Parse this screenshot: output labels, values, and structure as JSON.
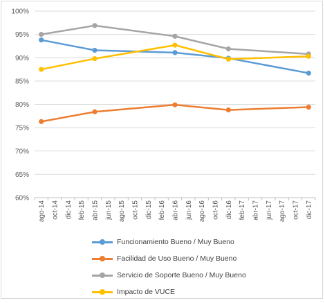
{
  "chart_data": {
    "type": "line",
    "x_labels": [
      "ago-14",
      "oct-14",
      "dic-14",
      "feb-15",
      "abr-15",
      "jun-15",
      "ago-15",
      "oct-15",
      "dic-15",
      "feb-16",
      "abr-16",
      "jun-16",
      "ago-16",
      "oct-16",
      "dic-16",
      "feb-17",
      "abr-17",
      "jun-17",
      "ago-17",
      "oct-17",
      "dic-17"
    ],
    "x_values": [
      "ago-14",
      "abr-15",
      "abr-16",
      "dic-16",
      "dic-17"
    ],
    "ylim": [
      0.6,
      1.0
    ],
    "y_ticks": [
      "60%",
      "65%",
      "70%",
      "75%",
      "80%",
      "85%",
      "90%",
      "95%",
      "100%"
    ],
    "grid": true,
    "legend_position": "bottom",
    "series": [
      {
        "name": "Funcionamiento Bueno / Muy Bueno",
        "color": "#5b9bd5",
        "values": [
          0.938,
          0.916,
          0.911,
          0.899,
          0.867
        ]
      },
      {
        "name": "Facilidad de Uso Bueno / Muy Bueno",
        "color": "#ed7d31",
        "values": [
          0.763,
          0.784,
          0.799,
          0.788,
          0.794
        ]
      },
      {
        "name": "Servicio de Soporte Bueno / Muy Bueno",
        "color": "#a5a5a5",
        "values": [
          0.95,
          0.969,
          0.946,
          0.919,
          0.908
        ]
      },
      {
        "name": "Impacto de VUCE",
        "color": "#ffc000",
        "values": [
          0.875,
          0.898,
          0.927,
          0.897,
          0.903
        ]
      }
    ]
  }
}
